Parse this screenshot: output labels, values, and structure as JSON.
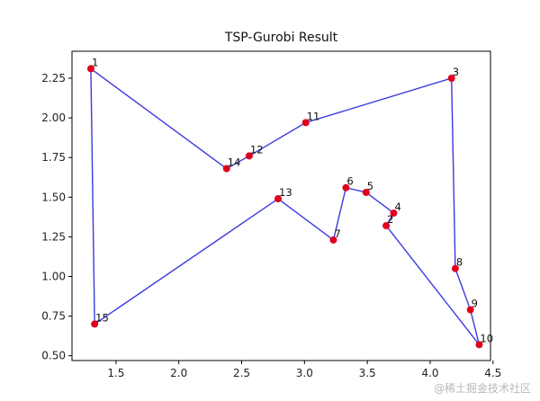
{
  "chart_data": {
    "type": "line",
    "title": "TSP-Gurobi Result",
    "xlabel": "",
    "ylabel": "",
    "xlim": [
      1.15,
      4.48
    ],
    "ylim": [
      0.47,
      2.42
    ],
    "x_ticks": [
      {
        "value": 1.5,
        "label": "1.5"
      },
      {
        "value": 2.0,
        "label": "2.0"
      },
      {
        "value": 2.5,
        "label": "2.5"
      },
      {
        "value": 3.0,
        "label": "3.0"
      },
      {
        "value": 3.5,
        "label": "3.5"
      },
      {
        "value": 4.0,
        "label": "4.0"
      },
      {
        "value": 4.5,
        "label": "4.5"
      }
    ],
    "y_ticks": [
      {
        "value": 0.5,
        "label": "0.50"
      },
      {
        "value": 0.75,
        "label": "0.75"
      },
      {
        "value": 1.0,
        "label": "1.00"
      },
      {
        "value": 1.25,
        "label": "1.25"
      },
      {
        "value": 1.5,
        "label": "1.50"
      },
      {
        "value": 1.75,
        "label": "1.75"
      },
      {
        "value": 2.0,
        "label": "2.00"
      },
      {
        "value": 2.25,
        "label": "2.25"
      }
    ],
    "nodes": [
      {
        "label": "1",
        "x": 1.3,
        "y": 2.31
      },
      {
        "label": "14",
        "x": 2.38,
        "y": 1.68
      },
      {
        "label": "12",
        "x": 2.56,
        "y": 1.76
      },
      {
        "label": "11",
        "x": 3.01,
        "y": 1.97
      },
      {
        "label": "3",
        "x": 4.17,
        "y": 2.25
      },
      {
        "label": "8",
        "x": 4.2,
        "y": 1.05
      },
      {
        "label": "9",
        "x": 4.32,
        "y": 0.79
      },
      {
        "label": "10",
        "x": 4.39,
        "y": 0.57
      },
      {
        "label": "2",
        "x": 3.65,
        "y": 1.32
      },
      {
        "label": "4",
        "x": 3.71,
        "y": 1.4
      },
      {
        "label": "5",
        "x": 3.49,
        "y": 1.53
      },
      {
        "label": "6",
        "x": 3.33,
        "y": 1.56
      },
      {
        "label": "7",
        "x": 3.23,
        "y": 1.23
      },
      {
        "label": "13",
        "x": 2.79,
        "y": 1.49
      },
      {
        "label": "15",
        "x": 1.33,
        "y": 0.7
      }
    ],
    "route": [
      "1",
      "14",
      "12",
      "11",
      "3",
      "8",
      "9",
      "10",
      "2",
      "4",
      "5",
      "6",
      "7",
      "13",
      "15",
      "1"
    ],
    "grid": false,
    "colors": {
      "line": "#3a3ae0",
      "marker": "#e0001b",
      "axes": "#000000"
    }
  },
  "watermark": "@稀土掘金技术社区"
}
